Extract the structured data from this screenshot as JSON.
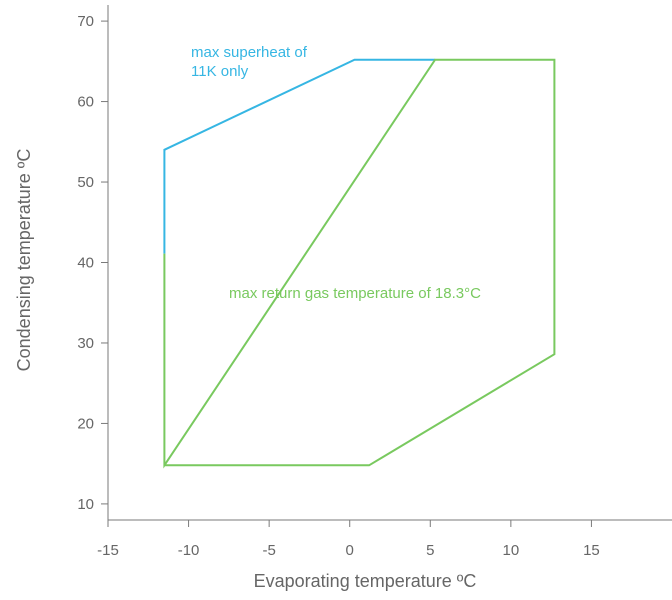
{
  "chart_data": {
    "type": "line",
    "xlabel": "Evaporating temperature ºC",
    "ylabel": "Condensing temperature  ºC",
    "xlim": [
      -15,
      20
    ],
    "ylim": [
      8,
      72
    ],
    "x_ticks": [
      -15,
      -10,
      -5,
      0,
      5,
      10,
      15
    ],
    "x_tick_labels": [
      "-15",
      "-10",
      "-5",
      "0",
      "5",
      "10",
      "15"
    ],
    "y_ticks": [
      10,
      20,
      30,
      40,
      50,
      60,
      70
    ],
    "y_tick_labels": [
      "10",
      "20",
      "30",
      "40",
      "50",
      "60",
      "70"
    ],
    "grid": false,
    "series": [
      {
        "color": "#36b6e3",
        "x": [
          -11.5,
          -11.5,
          0.3,
          5.3
        ],
        "y": [
          41.1,
          54.0,
          65.2,
          65.2
        ]
      },
      {
        "color": "#79c95f",
        "x": [
          -11.5,
          -11.5,
          5.3,
          12.7,
          12.7,
          1.2,
          -11.5
        ],
        "y": [
          41.1,
          14.8,
          65.2,
          65.2,
          28.6,
          14.8,
          14.8
        ]
      }
    ],
    "annotations": [
      {
        "lines": [
          "max superheat of",
          "11K only"
        ],
        "color": "#36b6e3"
      },
      {
        "lines": [
          "max return gas temperature of 18.3°C"
        ],
        "color": "#79c95f"
      }
    ]
  }
}
